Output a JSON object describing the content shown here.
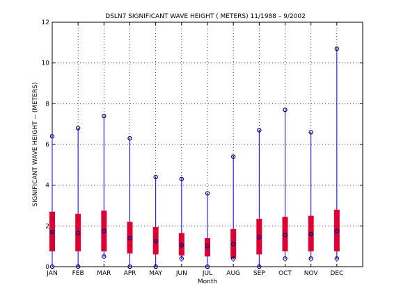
{
  "chart_data": {
    "type": "boxplot",
    "title": "DSLN7  SIGNIFICANT WAVE HEIGHT ( METERS) 11/1988 – 9/2002",
    "xlabel": "Month",
    "ylabel": "SIGNIFICANT WAVE HEIGHT -- (METERS)",
    "ylim": [
      0,
      12
    ],
    "yticks": [
      0,
      2,
      4,
      6,
      8,
      10,
      12
    ],
    "grid": true,
    "categories": [
      "JAN",
      "FEB",
      "MAR",
      "APR",
      "MAY",
      "JUN",
      "JUL",
      "AUG",
      "SEP",
      "OCT",
      "NOV",
      "DEC"
    ],
    "series": [
      {
        "min": [
          0.0,
          0.0,
          0.5,
          0.0,
          0.0,
          0.4,
          0.0,
          0.4,
          0.0,
          0.4,
          0.4,
          0.4
        ],
        "q1": [
          0.75,
          0.75,
          0.75,
          0.65,
          0.6,
          0.55,
          0.5,
          0.4,
          0.6,
          0.75,
          0.75,
          0.75
        ],
        "median": [
          1.7,
          1.65,
          1.75,
          1.4,
          1.25,
          1.05,
          1.0,
          1.1,
          1.45,
          1.55,
          1.6,
          1.75
        ],
        "q3": [
          2.7,
          2.6,
          2.75,
          2.2,
          1.95,
          1.65,
          1.4,
          1.85,
          2.35,
          2.45,
          2.5,
          2.8
        ],
        "max": [
          6.4,
          6.8,
          7.4,
          6.3,
          4.4,
          4.3,
          3.6,
          5.4,
          6.7,
          7.7,
          6.6,
          10.7
        ]
      }
    ],
    "colors": {
      "whisker": "#0000ff",
      "box": "#dd0033",
      "marker": "#000080",
      "grid": "#000000"
    }
  }
}
